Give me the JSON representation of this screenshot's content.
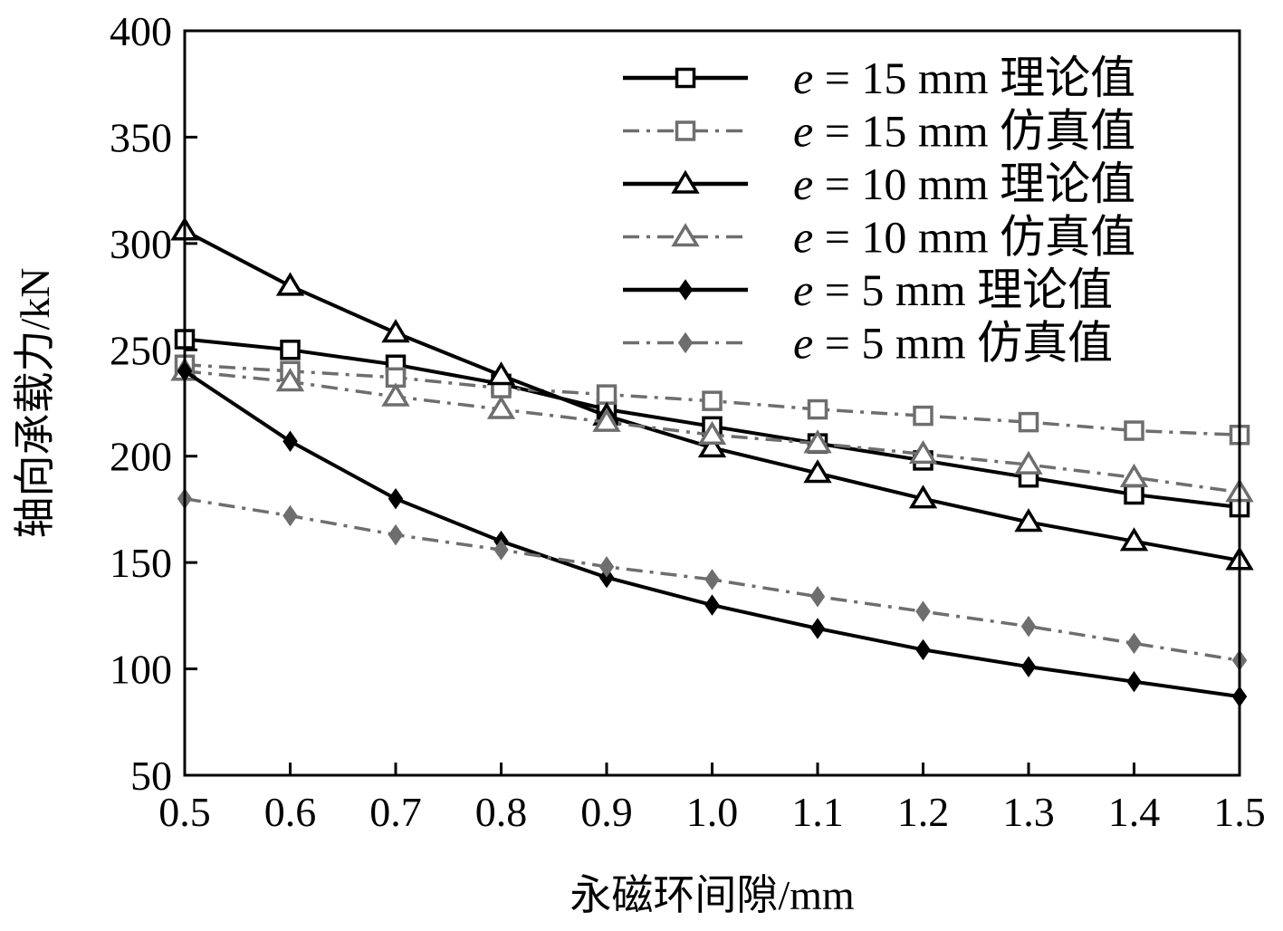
{
  "chart_data": {
    "type": "line",
    "title": "",
    "xlabel": "永磁环间隙/mm",
    "ylabel": "轴向承载力/kN",
    "xlim": [
      0.5,
      1.5
    ],
    "ylim": [
      50,
      400
    ],
    "x_ticks": [
      "0.5",
      "0.6",
      "0.7",
      "0.8",
      "0.9",
      "1.0",
      "1.1",
      "1.2",
      "1.3",
      "1.4",
      "1.5"
    ],
    "y_ticks": [
      "50",
      "100",
      "150",
      "200",
      "250",
      "300",
      "350",
      "400"
    ],
    "grid": false,
    "legend_position": "top-right",
    "x": [
      0.5,
      0.6,
      0.7,
      0.8,
      0.9,
      1.0,
      1.1,
      1.2,
      1.3,
      1.4,
      1.5
    ],
    "series": [
      {
        "name": "e = 15 mm 理论值",
        "name_var": "e",
        "name_rest": "= 15 mm 理论值",
        "color": "#000000",
        "marker": "square",
        "dash": "solid",
        "values": [
          255,
          250,
          243,
          234,
          222,
          214,
          206,
          198,
          190,
          182,
          176
        ]
      },
      {
        "name": "e = 15 mm 仿真值",
        "name_var": "e",
        "name_rest": "= 15 mm 仿真值",
        "color": "#6e6e6e",
        "marker": "square",
        "dash": "dashdot",
        "values": [
          243,
          240,
          237,
          232,
          229,
          226,
          222,
          219,
          216,
          212,
          210
        ]
      },
      {
        "name": "e = 10 mm 理论值",
        "name_var": "e",
        "name_rest": "= 10 mm 理论值",
        "color": "#000000",
        "marker": "triangle",
        "dash": "solid",
        "values": [
          306,
          280,
          258,
          238,
          219,
          204,
          192,
          180,
          169,
          160,
          151
        ]
      },
      {
        "name": "e = 10 mm 仿真值",
        "name_var": "e",
        "name_rest": "= 10 mm 仿真值",
        "color": "#6e6e6e",
        "marker": "triangle",
        "dash": "dashdot",
        "values": [
          240,
          235,
          228,
          222,
          216,
          210,
          206,
          201,
          196,
          190,
          183
        ]
      },
      {
        "name": "e = 5 mm 理论值",
        "name_var": "e",
        "name_rest": "= 5 mm 理论值",
        "color": "#000000",
        "marker": "diamond",
        "dash": "solid",
        "values": [
          240,
          207,
          180,
          160,
          143,
          130,
          119,
          109,
          101,
          94,
          87
        ]
      },
      {
        "name": "e = 5 mm 仿真值",
        "name_var": "e",
        "name_rest": "= 5 mm 仿真值",
        "color": "#6e6e6e",
        "marker": "diamond",
        "dash": "dashdot",
        "values": [
          180,
          172,
          163,
          156,
          148,
          142,
          134,
          127,
          120,
          112,
          104
        ]
      }
    ]
  }
}
